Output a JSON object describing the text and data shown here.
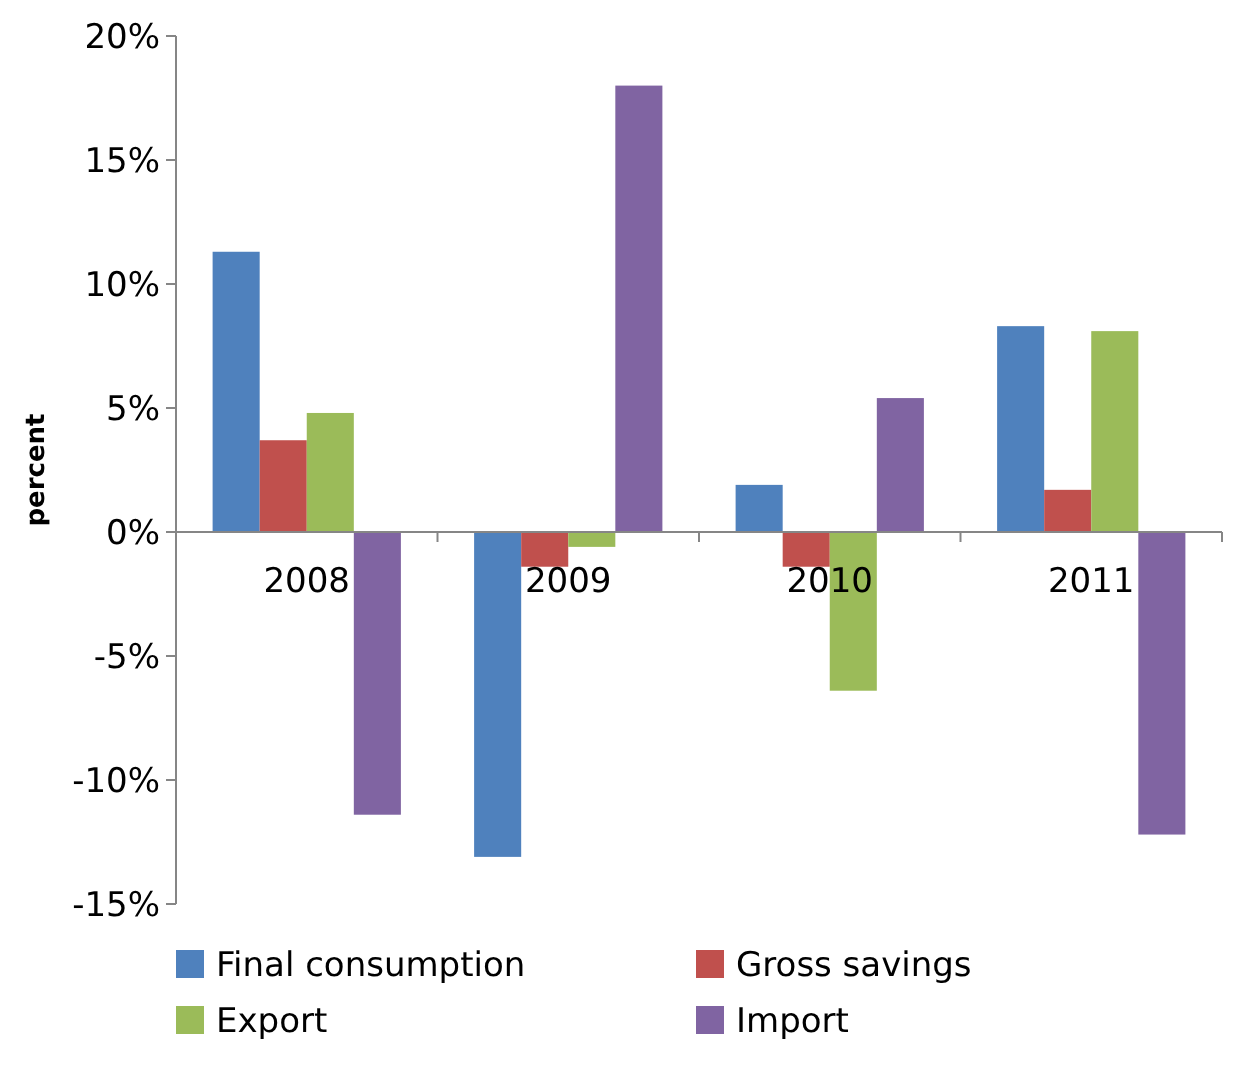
{
  "chart_data": {
    "type": "bar",
    "ylabel": "percent",
    "categories": [
      "2008",
      "2009",
      "2010",
      "2011"
    ],
    "series": [
      {
        "name": "Final consumption",
        "color": "#4f81bd",
        "values": [
          11.3,
          -13.1,
          1.9,
          8.3
        ]
      },
      {
        "name": "Gross savings",
        "color": "#c0504d",
        "values": [
          3.7,
          -1.4,
          -1.4,
          1.7
        ]
      },
      {
        "name": "Export",
        "color": "#9bbb59",
        "values": [
          4.8,
          -0.6,
          -6.4,
          8.1
        ]
      },
      {
        "name": "Import",
        "color": "#8064a2",
        "values": [
          -11.4,
          18.0,
          5.4,
          -12.2
        ]
      }
    ],
    "ylim": [
      -15,
      20
    ],
    "yticks": [
      {
        "value": -15,
        "label": "-15%"
      },
      {
        "value": -10,
        "label": "-10%"
      },
      {
        "value": -5,
        "label": "-5%"
      },
      {
        "value": 0,
        "label": "0%"
      },
      {
        "value": 5,
        "label": "5%"
      },
      {
        "value": 10,
        "label": "10%"
      },
      {
        "value": 15,
        "label": "15%"
      },
      {
        "value": 20,
        "label": "20%"
      }
    ],
    "grid": false,
    "legend": "bottom"
  }
}
